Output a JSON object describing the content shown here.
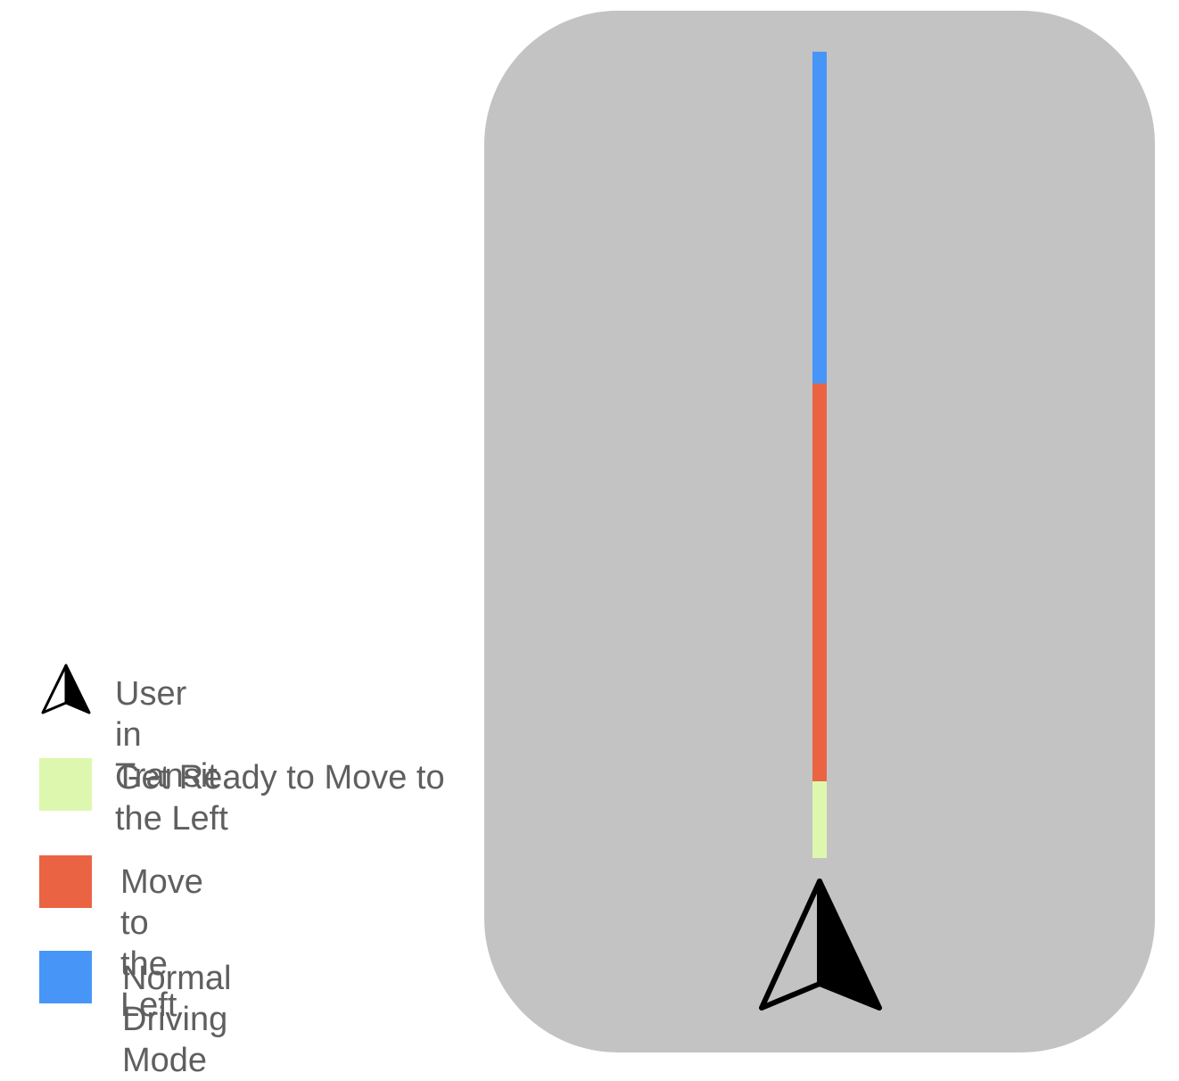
{
  "legend": {
    "items": [
      {
        "key": "transit",
        "label": "User in Transit",
        "icon": "navigation-arrow-icon"
      },
      {
        "key": "ready",
        "label": "Get Ready to Move to the Left",
        "color": "#ddf8ae"
      },
      {
        "key": "move",
        "label": "Move to the Left",
        "color": "#ea6444"
      },
      {
        "key": "normal",
        "label": "Normal Driving Mode",
        "color": "#4796f7"
      }
    ]
  },
  "device": {
    "background": "#c3c3c3",
    "lane_segments": [
      {
        "key": "normal",
        "color": "#4796f7"
      },
      {
        "key": "move",
        "color": "#ea6444"
      },
      {
        "key": "ready",
        "color": "#ddf8ae"
      }
    ],
    "user_icon": "navigation-arrow-icon"
  }
}
